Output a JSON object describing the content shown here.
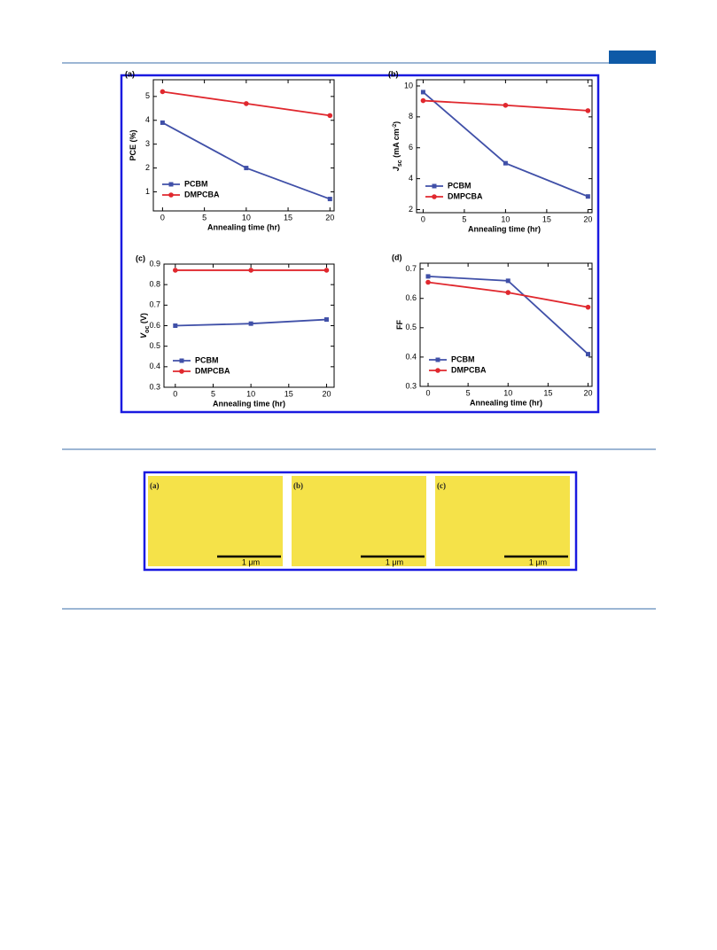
{
  "chart_data": [
    {
      "type": "line",
      "panel": "(a)",
      "xlabel": "Annealing time (hr)",
      "ylabel": [
        "PCE (%)"
      ],
      "x": [
        0,
        10,
        20
      ],
      "xlim": [
        -1.1,
        20.5
      ],
      "xticks": [
        0,
        5,
        10,
        15,
        20
      ],
      "ylim": [
        0.2,
        5.7
      ],
      "yticks": [
        1,
        2,
        3,
        4,
        5
      ],
      "legend": "lower left",
      "series": [
        {
          "name": "PCBM",
          "color": "#4050a8",
          "marker": "square",
          "values": [
            3.9,
            2.0,
            0.7
          ]
        },
        {
          "name": "DMPCBA",
          "color": "#e0282e",
          "marker": "circle",
          "values": [
            5.2,
            4.7,
            4.2
          ]
        }
      ]
    },
    {
      "type": "line",
      "panel": "(b)",
      "xlabel": "Annealing time (hr)",
      "ylabel": [
        "J",
        "sc",
        " (mA cm",
        "-2",
        ")"
      ],
      "x": [
        0,
        10,
        20
      ],
      "xlim": [
        -0.8,
        20.5
      ],
      "xticks": [
        0,
        5,
        10,
        15,
        20
      ],
      "ylim": [
        1.8,
        10.4
      ],
      "yticks": [
        2,
        4,
        6,
        8,
        10
      ],
      "legend": "lower left",
      "series": [
        {
          "name": "PCBM",
          "color": "#4050a8",
          "marker": "square",
          "values": [
            9.6,
            5.0,
            2.85
          ]
        },
        {
          "name": "DMPCBA",
          "color": "#e0282e",
          "marker": "circle",
          "values": [
            9.05,
            8.75,
            8.4
          ]
        }
      ]
    },
    {
      "type": "line",
      "panel": "(c)",
      "xlabel": "Annealing time (hr)",
      "ylabel": [
        "V",
        "oc",
        " (V)"
      ],
      "x": [
        0,
        10,
        20
      ],
      "xlim": [
        -1.5,
        21
      ],
      "xticks": [
        0,
        5,
        10,
        15,
        20
      ],
      "ylim": [
        0.3,
        0.9
      ],
      "yticks": [
        0.3,
        0.4,
        0.5,
        0.6,
        0.7,
        0.8,
        0.9
      ],
      "legend": "lower left",
      "series": [
        {
          "name": "PCBM",
          "color": "#4050a8",
          "marker": "square",
          "values": [
            0.6,
            0.61,
            0.63
          ]
        },
        {
          "name": "DMPCBA",
          "color": "#e0282e",
          "marker": "circle",
          "values": [
            0.87,
            0.87,
            0.87
          ]
        }
      ]
    },
    {
      "type": "line",
      "panel": "(d)",
      "xlabel": "Annealing time (hr)",
      "ylabel": [
        "FF"
      ],
      "x": [
        0,
        10,
        20
      ],
      "xlim": [
        -1,
        20.5
      ],
      "xticks": [
        0,
        5,
        10,
        15,
        20
      ],
      "ylim": [
        0.3,
        0.72
      ],
      "yticks": [
        0.3,
        0.4,
        0.5,
        0.6,
        0.7
      ],
      "legend": "lower left",
      "series": [
        {
          "name": "PCBM",
          "color": "#4050a8",
          "marker": "square",
          "values": [
            0.675,
            0.66,
            0.41
          ]
        },
        {
          "name": "DMPCBA",
          "color": "#e0282e",
          "marker": "circle",
          "values": [
            0.655,
            0.62,
            0.57
          ]
        }
      ]
    }
  ],
  "afm_figure": {
    "panels": [
      {
        "label": "(a)",
        "scale": "1 μm"
      },
      {
        "label": "(b)",
        "scale": "1 μm"
      },
      {
        "label": "(c)",
        "scale": "1 μm"
      }
    ]
  }
}
